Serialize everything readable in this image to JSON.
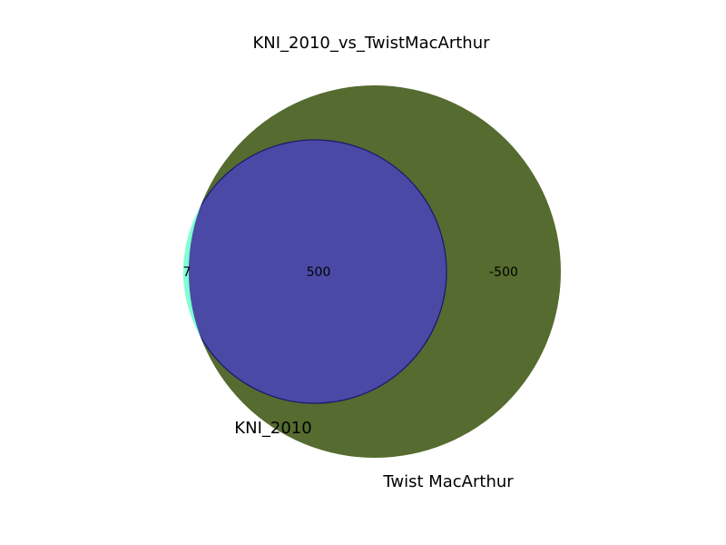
{
  "title": "KNI_2010_vs_TwistMacArthur",
  "sets": [
    {
      "name": "KNI_2010",
      "color": "#7fffd4"
    },
    {
      "name": "Twist MacArthur",
      "color": "#556b2f"
    }
  ],
  "regions": {
    "only_a": "7",
    "intersection": "500",
    "only_b": "-500"
  },
  "intersection_color": "#4a4aa6",
  "intersection_outline": "#1a1a6e"
}
